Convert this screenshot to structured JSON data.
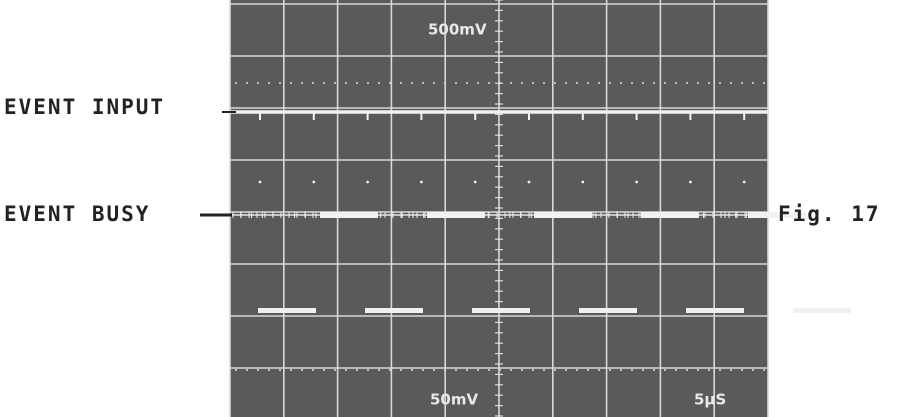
{
  "labels": {
    "event_input": "EVENT INPUT",
    "event_busy": "EVENT BUSY"
  },
  "scope": {
    "top_scale": "500mV",
    "bottom_scale": "50mV",
    "time_scale": "5μS"
  },
  "caption": "Fig. 17"
}
